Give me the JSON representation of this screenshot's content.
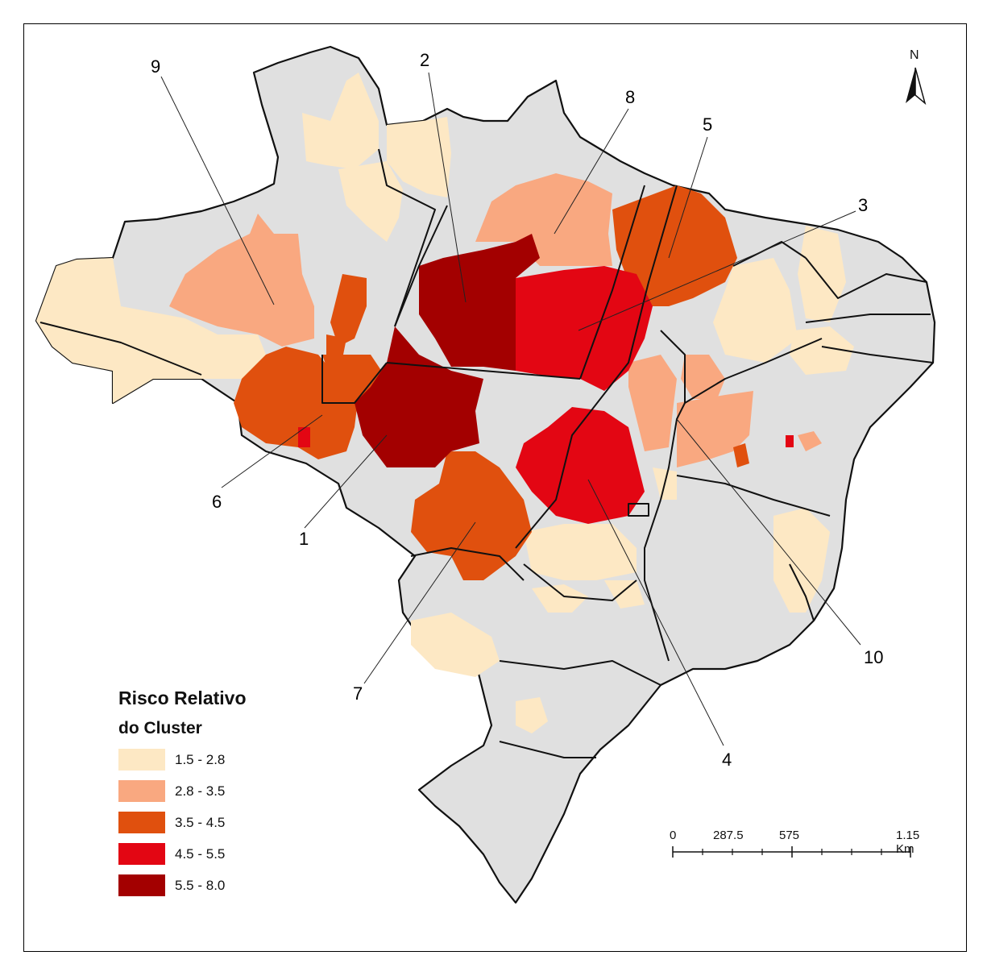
{
  "legend": {
    "title_line1": "Risco Relativo",
    "title_line2": "do Cluster",
    "items": [
      {
        "label": "1.5 - 2.8",
        "color": "#fde8c4"
      },
      {
        "label": "2.8 - 3.5",
        "color": "#f9a880"
      },
      {
        "label": "3.5 - 4.5",
        "color": "#e0500e"
      },
      {
        "label": "4.5 - 5.5",
        "color": "#e30613"
      },
      {
        "label": "5.5 - 8.0",
        "color": "#a30000"
      }
    ]
  },
  "clusters": [
    "1",
    "2",
    "3",
    "4",
    "5",
    "6",
    "7",
    "8",
    "9",
    "10"
  ],
  "scale_bar": {
    "labels": [
      "0",
      "287.5",
      "575",
      "1.15 Km"
    ]
  },
  "north_arrow": {
    "label": "N"
  },
  "colors": {
    "background_land": "#e0e0e0",
    "border": "#111111"
  }
}
